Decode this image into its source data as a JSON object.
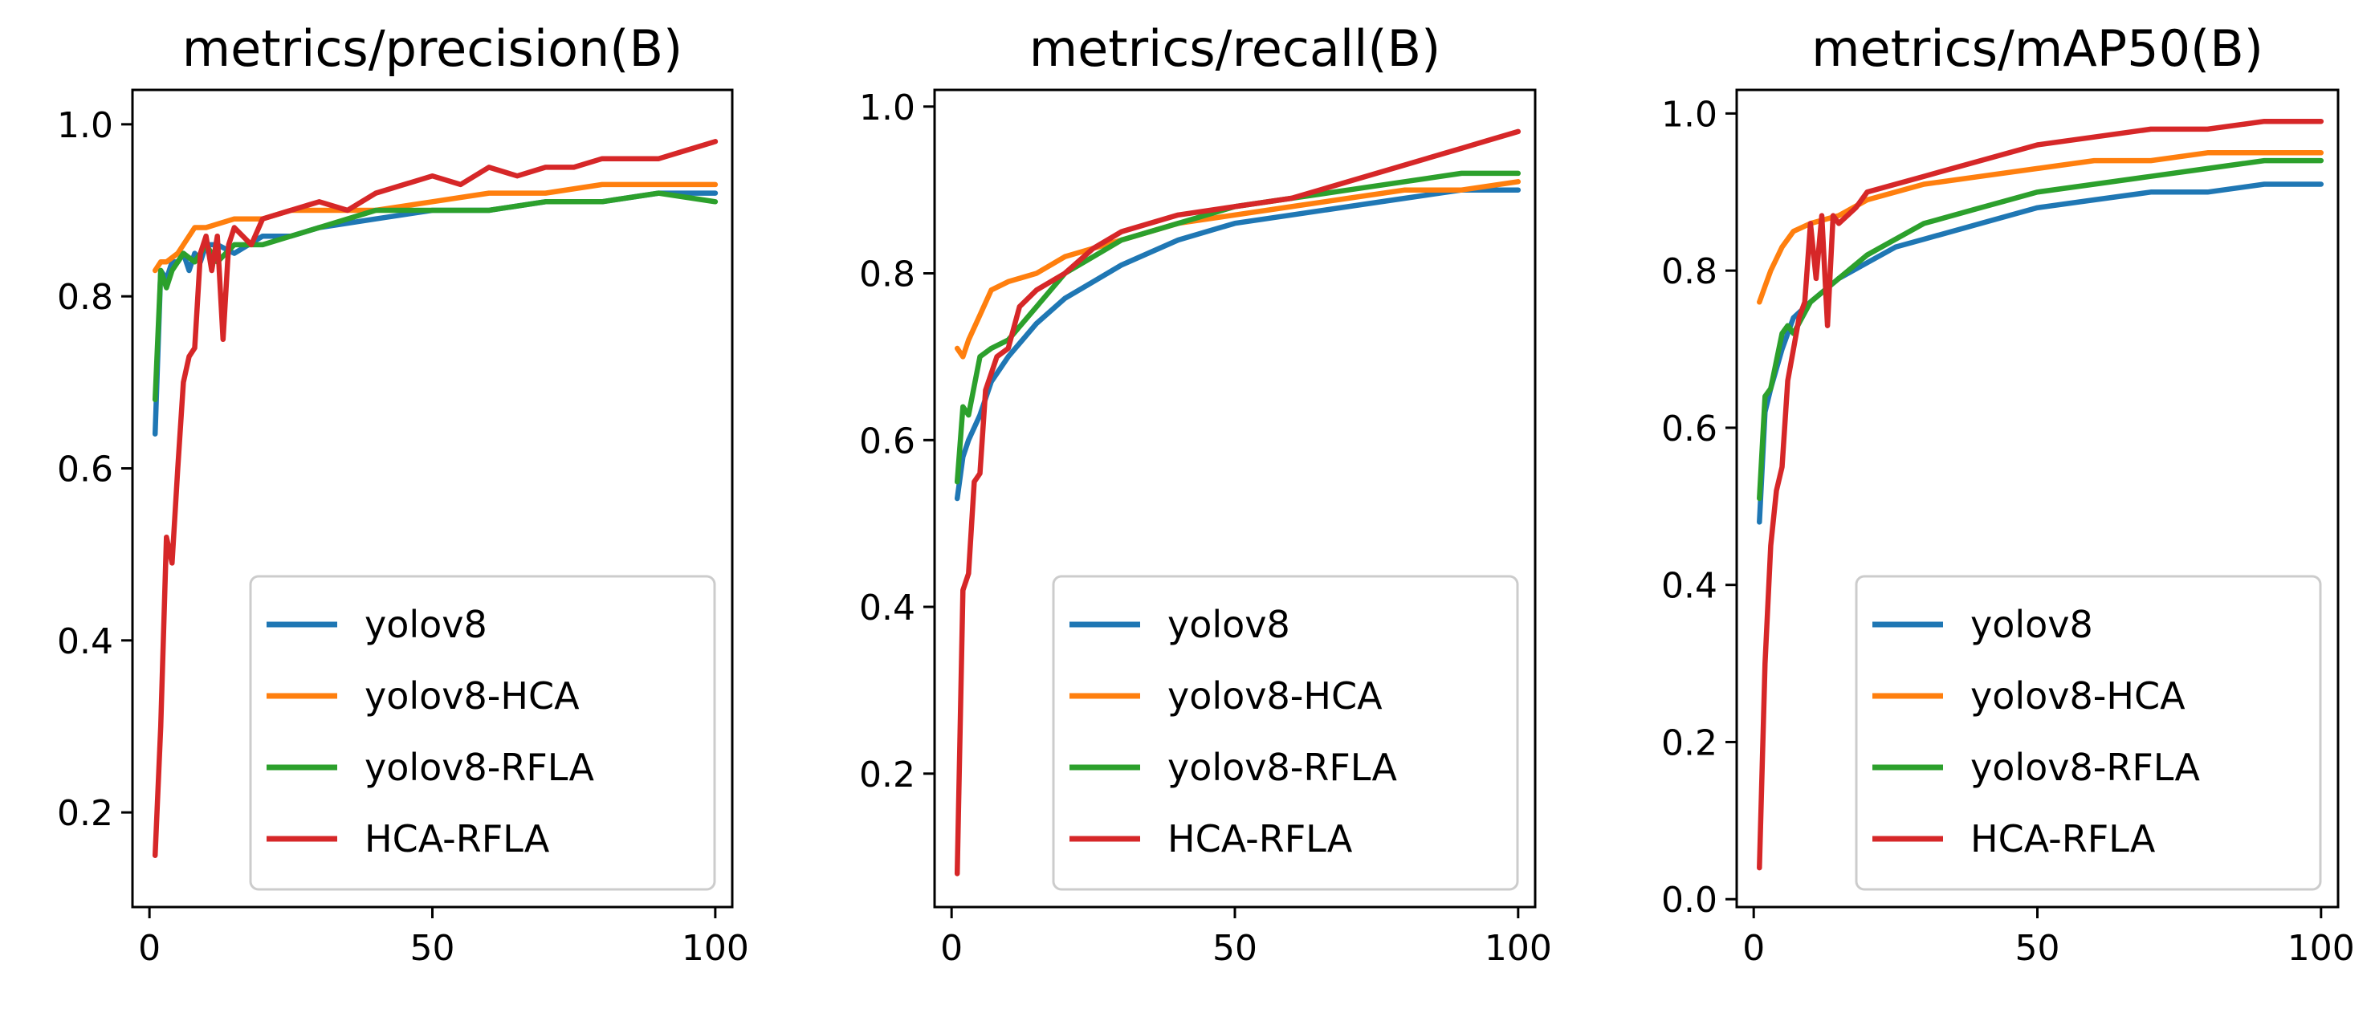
{
  "chart_data": [
    {
      "type": "line",
      "title": "metrics/precision(B)",
      "xlabel": "",
      "ylabel": "",
      "xlim": [
        -3,
        103
      ],
      "ylim": [
        0.09,
        1.04
      ],
      "xticks": [
        "0",
        "50",
        "100"
      ],
      "xtick_values": [
        0,
        50,
        100
      ],
      "yticks": [
        "0.2",
        "0.4",
        "0.6",
        "0.8",
        "1.0"
      ],
      "ytick_values": [
        0.2,
        0.4,
        0.6,
        0.8,
        1.0
      ],
      "legend_position": "lower-right",
      "series": [
        {
          "name": "yolov8",
          "color": "#1f77b4",
          "x": [
            1,
            2,
            3,
            4,
            5,
            6,
            7,
            8,
            9,
            10,
            12,
            15,
            20,
            25,
            30,
            40,
            50,
            60,
            70,
            80,
            90,
            100
          ],
          "values": [
            0.64,
            0.83,
            0.82,
            0.84,
            0.84,
            0.85,
            0.83,
            0.85,
            0.84,
            0.86,
            0.86,
            0.85,
            0.87,
            0.87,
            0.88,
            0.89,
            0.9,
            0.9,
            0.91,
            0.91,
            0.92,
            0.92
          ]
        },
        {
          "name": "yolov8-HCA",
          "color": "#ff7f0e",
          "x": [
            1,
            2,
            3,
            5,
            8,
            10,
            15,
            20,
            25,
            30,
            40,
            50,
            60,
            70,
            80,
            90,
            100
          ],
          "values": [
            0.83,
            0.84,
            0.84,
            0.85,
            0.88,
            0.88,
            0.89,
            0.89,
            0.9,
            0.9,
            0.9,
            0.91,
            0.92,
            0.92,
            0.93,
            0.93,
            0.93
          ]
        },
        {
          "name": "yolov8-RFLA",
          "color": "#2ca02c",
          "x": [
            1,
            2,
            3,
            4,
            5,
            6,
            8,
            10,
            12,
            15,
            20,
            25,
            30,
            40,
            50,
            60,
            70,
            80,
            90,
            100
          ],
          "values": [
            0.68,
            0.83,
            0.81,
            0.83,
            0.84,
            0.85,
            0.84,
            0.86,
            0.84,
            0.86,
            0.86,
            0.87,
            0.88,
            0.9,
            0.9,
            0.9,
            0.91,
            0.91,
            0.92,
            0.91
          ]
        },
        {
          "name": "HCA-RFLA",
          "color": "#d62728",
          "x": [
            1,
            2,
            3,
            4,
            5,
            6,
            7,
            8,
            9,
            10,
            11,
            12,
            13,
            14,
            15,
            18,
            20,
            25,
            30,
            35,
            40,
            45,
            50,
            55,
            60,
            65,
            70,
            75,
            80,
            85,
            90,
            95,
            100
          ],
          "values": [
            0.15,
            0.3,
            0.52,
            0.49,
            0.6,
            0.7,
            0.73,
            0.74,
            0.85,
            0.87,
            0.83,
            0.87,
            0.75,
            0.86,
            0.88,
            0.86,
            0.89,
            0.9,
            0.91,
            0.9,
            0.92,
            0.93,
            0.94,
            0.93,
            0.95,
            0.94,
            0.95,
            0.95,
            0.96,
            0.96,
            0.96,
            0.97,
            0.98
          ]
        }
      ]
    },
    {
      "type": "line",
      "title": "metrics/recall(B)",
      "xlabel": "",
      "ylabel": "",
      "xlim": [
        -3,
        103
      ],
      "ylim": [
        0.04,
        1.02
      ],
      "xticks": [
        "0",
        "50",
        "100"
      ],
      "xtick_values": [
        0,
        50,
        100
      ],
      "yticks": [
        "0.2",
        "0.4",
        "0.6",
        "0.8",
        "1.0"
      ],
      "ytick_values": [
        0.2,
        0.4,
        0.6,
        0.8,
        1.0
      ],
      "legend_position": "lower-right",
      "series": [
        {
          "name": "yolov8",
          "color": "#1f77b4",
          "x": [
            1,
            2,
            3,
            5,
            7,
            10,
            15,
            20,
            25,
            30,
            40,
            50,
            60,
            70,
            80,
            90,
            100
          ],
          "values": [
            0.53,
            0.58,
            0.6,
            0.63,
            0.67,
            0.7,
            0.74,
            0.77,
            0.79,
            0.81,
            0.84,
            0.86,
            0.87,
            0.88,
            0.89,
            0.9,
            0.9
          ]
        },
        {
          "name": "yolov8-HCA",
          "color": "#ff7f0e",
          "x": [
            1,
            2,
            3,
            5,
            7,
            10,
            15,
            20,
            25,
            30,
            40,
            50,
            60,
            70,
            80,
            90,
            100
          ],
          "values": [
            0.71,
            0.7,
            0.72,
            0.75,
            0.78,
            0.79,
            0.8,
            0.82,
            0.83,
            0.84,
            0.86,
            0.87,
            0.88,
            0.89,
            0.9,
            0.9,
            0.91
          ]
        },
        {
          "name": "yolov8-RFLA",
          "color": "#2ca02c",
          "x": [
            1,
            2,
            3,
            5,
            7,
            10,
            15,
            20,
            25,
            30,
            40,
            50,
            60,
            70,
            80,
            90,
            100
          ],
          "values": [
            0.55,
            0.64,
            0.63,
            0.7,
            0.71,
            0.72,
            0.76,
            0.8,
            0.82,
            0.84,
            0.86,
            0.88,
            0.89,
            0.9,
            0.91,
            0.92,
            0.92
          ]
        },
        {
          "name": "HCA-RFLA",
          "color": "#d62728",
          "x": [
            1,
            2,
            3,
            4,
            5,
            6,
            7,
            8,
            10,
            12,
            15,
            20,
            25,
            30,
            40,
            50,
            60,
            70,
            80,
            90,
            95,
            100
          ],
          "values": [
            0.08,
            0.42,
            0.44,
            0.55,
            0.56,
            0.66,
            0.68,
            0.7,
            0.71,
            0.76,
            0.78,
            0.8,
            0.83,
            0.85,
            0.87,
            0.88,
            0.89,
            0.91,
            0.93,
            0.95,
            0.96,
            0.97
          ]
        }
      ]
    },
    {
      "type": "line",
      "title": "metrics/mAP50(B)",
      "xlabel": "",
      "ylabel": "",
      "xlim": [
        -3,
        103
      ],
      "ylim": [
        -0.01,
        1.03
      ],
      "xticks": [
        "0",
        "50",
        "100"
      ],
      "xtick_values": [
        0,
        50,
        100
      ],
      "yticks": [
        "0.0",
        "0.2",
        "0.4",
        "0.6",
        "0.8",
        "1.0"
      ],
      "ytick_values": [
        0.0,
        0.2,
        0.4,
        0.6,
        0.8,
        1.0
      ],
      "legend_position": "lower-right",
      "series": [
        {
          "name": "yolov8",
          "color": "#1f77b4",
          "x": [
            1,
            2,
            3,
            5,
            7,
            10,
            15,
            20,
            25,
            30,
            40,
            50,
            60,
            70,
            80,
            90,
            100
          ],
          "values": [
            0.48,
            0.62,
            0.65,
            0.7,
            0.74,
            0.76,
            0.79,
            0.81,
            0.83,
            0.84,
            0.86,
            0.88,
            0.89,
            0.9,
            0.9,
            0.91,
            0.91
          ]
        },
        {
          "name": "yolov8-HCA",
          "color": "#ff7f0e",
          "x": [
            1,
            2,
            3,
            5,
            7,
            10,
            15,
            20,
            25,
            30,
            40,
            50,
            60,
            70,
            80,
            90,
            100
          ],
          "values": [
            0.76,
            0.78,
            0.8,
            0.83,
            0.85,
            0.86,
            0.87,
            0.89,
            0.9,
            0.91,
            0.92,
            0.93,
            0.94,
            0.94,
            0.95,
            0.95,
            0.95
          ]
        },
        {
          "name": "yolov8-RFLA",
          "color": "#2ca02c",
          "x": [
            1,
            2,
            3,
            5,
            6,
            7,
            10,
            15,
            20,
            25,
            30,
            40,
            50,
            60,
            70,
            80,
            90,
            100
          ],
          "values": [
            0.51,
            0.64,
            0.65,
            0.72,
            0.73,
            0.72,
            0.76,
            0.79,
            0.82,
            0.84,
            0.86,
            0.88,
            0.9,
            0.91,
            0.92,
            0.93,
            0.94,
            0.94
          ]
        },
        {
          "name": "HCA-RFLA",
          "color": "#d62728",
          "x": [
            1,
            2,
            3,
            4,
            5,
            6,
            7,
            8,
            9,
            10,
            11,
            12,
            13,
            14,
            15,
            18,
            20,
            25,
            30,
            35,
            40,
            50,
            60,
            70,
            80,
            90,
            100
          ],
          "values": [
            0.04,
            0.3,
            0.45,
            0.52,
            0.55,
            0.66,
            0.7,
            0.74,
            0.76,
            0.86,
            0.79,
            0.87,
            0.73,
            0.87,
            0.86,
            0.88,
            0.9,
            0.91,
            0.92,
            0.93,
            0.94,
            0.96,
            0.97,
            0.98,
            0.98,
            0.99,
            0.99
          ]
        }
      ]
    }
  ]
}
